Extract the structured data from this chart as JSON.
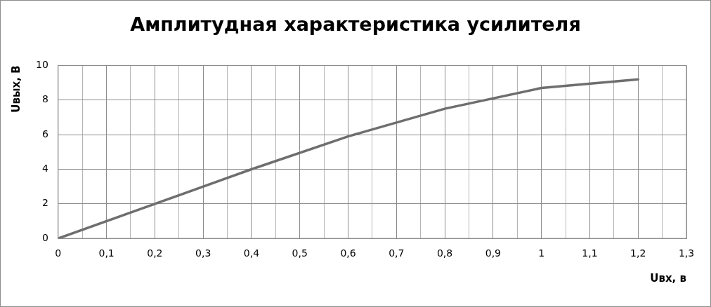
{
  "chart_data": {
    "type": "line",
    "title": "Амплитудная характеристика усилителя",
    "xlabel": "Uвх, в",
    "ylabel": "Uвых, В",
    "x": [
      0,
      0.2,
      0.4,
      0.6,
      0.8,
      1,
      1.2
    ],
    "series": [
      {
        "color": "#6e6e6e",
        "values": [
          0,
          2,
          4,
          5.9,
          7.5,
          8.7,
          9.2
        ]
      }
    ],
    "xlim": [
      0,
      1.3
    ],
    "xticks": [
      0,
      {
        "value": 0.05,
        "label": null
      },
      {
        "value": 0.1,
        "label": "0,1"
      },
      {
        "value": 0.15,
        "label": null
      },
      {
        "value": 0.2,
        "label": "0,2"
      },
      {
        "value": 0.25,
        "label": null
      },
      {
        "value": 0.3,
        "label": "0,3"
      },
      {
        "value": 0.35,
        "label": null
      },
      {
        "value": 0.4,
        "label": "0,4"
      },
      {
        "value": 0.45,
        "label": null
      },
      {
        "value": 0.5,
        "label": "0,5"
      },
      {
        "value": 0.55,
        "label": null
      },
      {
        "value": 0.6,
        "label": "0,6"
      },
      {
        "value": 0.65,
        "label": null
      },
      {
        "value": 0.7,
        "label": "0,7"
      },
      {
        "value": 0.75,
        "label": null
      },
      {
        "value": 0.8,
        "label": "0,8"
      },
      {
        "value": 0.85,
        "label": null
      },
      {
        "value": 0.9,
        "label": "0,9"
      },
      {
        "value": 0.95,
        "label": null
      },
      1,
      {
        "value": 1.05,
        "label": null
      },
      {
        "value": 1.1,
        "label": "1,1"
      },
      {
        "value": 1.15,
        "label": null
      },
      {
        "value": 1.2,
        "label": "1,2"
      },
      {
        "value": 1.25,
        "label": null
      },
      {
        "value": 1.3,
        "label": "1,3"
      }
    ],
    "ylim": [
      0,
      10
    ],
    "yticks": [
      0,
      2,
      4,
      6,
      8,
      10
    ],
    "grid": true,
    "legend": false,
    "marker": "none",
    "line_style": "solid"
  }
}
